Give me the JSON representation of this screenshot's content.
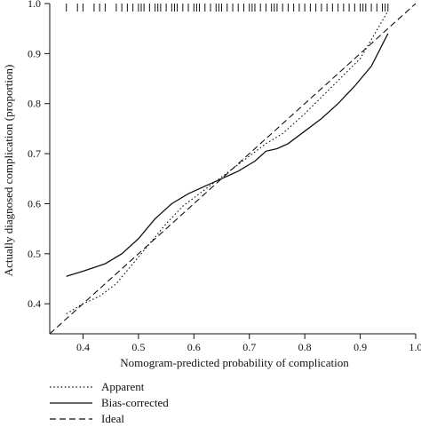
{
  "chart_data": {
    "type": "line",
    "title": "",
    "xlabel": "Nomogram-predicted probability of complication",
    "ylabel": "Actually diagnosed complication (proportion)",
    "xlim": [
      0.34,
      1.0
    ],
    "ylim": [
      0.34,
      1.0
    ],
    "x_ticks": [
      "0.4",
      "0.5",
      "0.6",
      "0.7",
      "0.8",
      "0.9",
      "1.0"
    ],
    "y_ticks": [
      "0.4",
      "0.5",
      "0.6",
      "0.7",
      "0.8",
      "0.9",
      "1.0"
    ],
    "grid": false,
    "legend_position": "bottom-left",
    "series": [
      {
        "name": "Apparent",
        "line_style": "dotted",
        "x": [
          0.37,
          0.4,
          0.43,
          0.46,
          0.49,
          0.52,
          0.55,
          0.58,
          0.61,
          0.64,
          0.67,
          0.7,
          0.73,
          0.76,
          0.8,
          0.85,
          0.9,
          0.95
        ],
        "y": [
          0.38,
          0.4,
          0.415,
          0.44,
          0.48,
          0.52,
          0.56,
          0.595,
          0.62,
          0.645,
          0.67,
          0.695,
          0.72,
          0.74,
          0.78,
          0.835,
          0.89,
          0.985
        ]
      },
      {
        "name": "Bias-corrected",
        "line_style": "solid",
        "x": [
          0.37,
          0.4,
          0.44,
          0.47,
          0.5,
          0.53,
          0.56,
          0.59,
          0.62,
          0.65,
          0.68,
          0.71,
          0.73,
          0.75,
          0.77,
          0.8,
          0.83,
          0.86,
          0.89,
          0.92,
          0.95
        ],
        "y": [
          0.455,
          0.465,
          0.48,
          0.5,
          0.53,
          0.57,
          0.6,
          0.62,
          0.635,
          0.65,
          0.665,
          0.685,
          0.705,
          0.71,
          0.72,
          0.745,
          0.77,
          0.8,
          0.835,
          0.875,
          0.94
        ]
      },
      {
        "name": "Ideal",
        "line_style": "dashed",
        "x": [
          0.34,
          1.0
        ],
        "y": [
          0.34,
          1.0
        ]
      }
    ],
    "rug_x": [
      0.37,
      0.39,
      0.4,
      0.42,
      0.43,
      0.44,
      0.46,
      0.47,
      0.48,
      0.49,
      0.5,
      0.505,
      0.51,
      0.52,
      0.53,
      0.535,
      0.54,
      0.55,
      0.56,
      0.565,
      0.57,
      0.58,
      0.59,
      0.6,
      0.605,
      0.61,
      0.62,
      0.63,
      0.64,
      0.645,
      0.65,
      0.66,
      0.67,
      0.68,
      0.69,
      0.7,
      0.705,
      0.71,
      0.72,
      0.73,
      0.74,
      0.745,
      0.75,
      0.76,
      0.77,
      0.78,
      0.79,
      0.8,
      0.81,
      0.82,
      0.83,
      0.84,
      0.85,
      0.86,
      0.87,
      0.88,
      0.89,
      0.9,
      0.905,
      0.91,
      0.92,
      0.93,
      0.94,
      0.945,
      0.95
    ]
  }
}
